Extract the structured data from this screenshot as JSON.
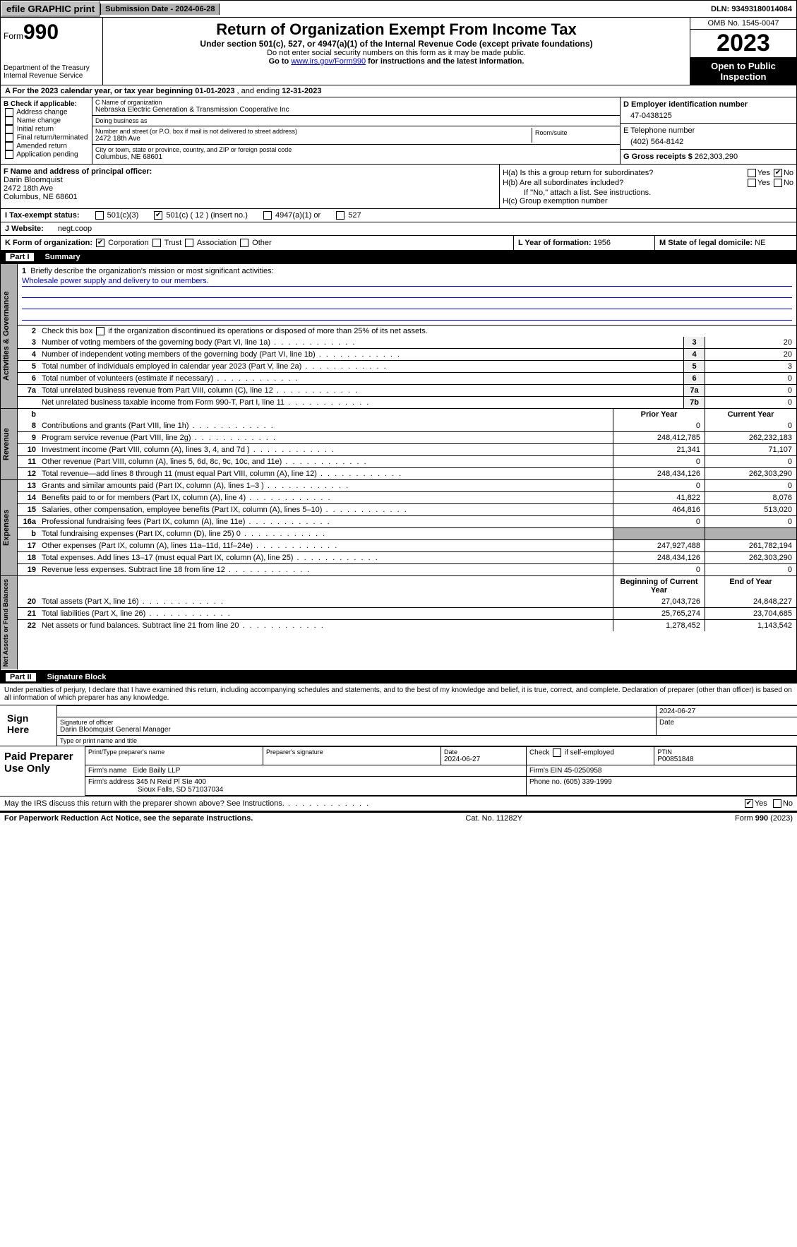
{
  "header": {
    "efile_label": "efile GRAPHIC print - DO NOT PROCESS",
    "print_btn": "efile GRAPHIC print",
    "sub_date_label": "Submission Date - ",
    "sub_date": "2024-06-28",
    "dln_label": "DLN: ",
    "dln": "93493180014084"
  },
  "top": {
    "form_prefix": "Form",
    "form_number": "990",
    "dept": "Department of the Treasury",
    "irs": "Internal Revenue Service",
    "title": "Return of Organization Exempt From Income Tax",
    "subtitle": "Under section 501(c), 527, or 4947(a)(1) of the Internal Revenue Code (except private foundations)",
    "ssn_note": "Do not enter social security numbers on this form as it may be made public.",
    "goto_prefix": "Go to ",
    "goto_link": "www.irs.gov/Form990",
    "goto_suffix": " for instructions and the latest information.",
    "omb": "OMB No. 1545-0047",
    "year": "2023",
    "open_pub": "Open to Public Inspection"
  },
  "row_a": {
    "text": "A For the 2023 calendar year, or tax year beginning ",
    "begin": "01-01-2023",
    "mid": "    , and ending ",
    "end": "12-31-2023"
  },
  "section_b": {
    "header": "B Check if applicable:",
    "items": [
      "Address change",
      "Name change",
      "Initial return",
      "Final return/terminated",
      "Amended return",
      "Application pending"
    ]
  },
  "section_c": {
    "name_label": "C Name of organization",
    "name": "Nebraska Electric Generation & Transmission Cooperative Inc",
    "dba_label": "Doing business as",
    "dba": "",
    "street_label": "Number and street (or P.O. box if mail is not delivered to street address)",
    "street": "2472 18th Ave",
    "room_label": "Room/suite",
    "room": "",
    "city_label": "City or town, state or province, country, and ZIP or foreign postal code",
    "city": "Columbus, NE  68601"
  },
  "section_d": {
    "label": "D Employer identification number",
    "ein": "47-0438125"
  },
  "section_e": {
    "label": "E Telephone number",
    "phone": "(402) 564-8142"
  },
  "section_g": {
    "label": "G Gross receipts $ ",
    "amount": "262,303,290"
  },
  "section_f": {
    "label": "F  Name and address of principal officer:",
    "name": "Darin Bloomquist",
    "street": "2472 18th Ave",
    "city": "Columbus, NE  68601"
  },
  "section_h": {
    "a_label": "H(a)  Is this a group return for subordinates?",
    "b_label": "H(b)  Are all subordinates included?",
    "b_note": "If \"No,\" attach a list. See instructions.",
    "c_label": "H(c)  Group exemption number",
    "yes": "Yes",
    "no": "No"
  },
  "section_i": {
    "label": "I  Tax-exempt status:",
    "opt1": "501(c)(3)",
    "opt2_pre": "501(c) ( ",
    "opt2_num": "12",
    "opt2_post": " ) (insert no.)",
    "opt3": "4947(a)(1) or",
    "opt4": "527"
  },
  "section_j": {
    "label": "J  Website:",
    "value": "negt.coop"
  },
  "section_k": {
    "label": "K Form of organization:",
    "opts": [
      "Corporation",
      "Trust",
      "Association",
      "Other"
    ]
  },
  "section_l": {
    "label": "L Year of formation: ",
    "value": "1956"
  },
  "section_m": {
    "label": "M State of legal domicile: ",
    "value": "NE"
  },
  "part1": {
    "hdr": "Part I",
    "title": "Summary",
    "vlabels": [
      "Activities & Governance",
      "Revenue",
      "Expenses",
      "Net Assets or Fund Balances"
    ],
    "mission_label": "Briefly describe the organization's mission or most significant activities:",
    "mission": "Wholesale power supply and delivery to our members.",
    "line2": "Check this box       if the organization discontinued its operations or disposed of more than 25% of its net assets.",
    "gov_lines": [
      {
        "n": "3",
        "d": "Number of voting members of the governing body (Part VI, line 1a)",
        "box": "3",
        "v": "20"
      },
      {
        "n": "4",
        "d": "Number of independent voting members of the governing body (Part VI, line 1b)",
        "box": "4",
        "v": "20"
      },
      {
        "n": "5",
        "d": "Total number of individuals employed in calendar year 2023 (Part V, line 2a)",
        "box": "5",
        "v": "3"
      },
      {
        "n": "6",
        "d": "Total number of volunteers (estimate if necessary)",
        "box": "6",
        "v": "0"
      },
      {
        "n": "7a",
        "d": "Total unrelated business revenue from Part VIII, column (C), line 12",
        "box": "7a",
        "v": "0"
      },
      {
        "n": "",
        "d": "Net unrelated business taxable income from Form 990-T, Part I, line 11",
        "box": "7b",
        "v": "0"
      }
    ],
    "col_prior": "Prior Year",
    "col_current": "Current Year",
    "rev_lines": [
      {
        "n": "8",
        "d": "Contributions and grants (Part VIII, line 1h)",
        "p": "0",
        "c": "0"
      },
      {
        "n": "9",
        "d": "Program service revenue (Part VIII, line 2g)",
        "p": "248,412,785",
        "c": "262,232,183"
      },
      {
        "n": "10",
        "d": "Investment income (Part VIII, column (A), lines 3, 4, and 7d )",
        "p": "21,341",
        "c": "71,107"
      },
      {
        "n": "11",
        "d": "Other revenue (Part VIII, column (A), lines 5, 6d, 8c, 9c, 10c, and 11e)",
        "p": "0",
        "c": "0"
      },
      {
        "n": "12",
        "d": "Total revenue—add lines 8 through 11 (must equal Part VIII, column (A), line 12)",
        "p": "248,434,126",
        "c": "262,303,290"
      }
    ],
    "exp_lines": [
      {
        "n": "13",
        "d": "Grants and similar amounts paid (Part IX, column (A), lines 1–3 )",
        "p": "0",
        "c": "0"
      },
      {
        "n": "14",
        "d": "Benefits paid to or for members (Part IX, column (A), line 4)",
        "p": "41,822",
        "c": "8,076"
      },
      {
        "n": "15",
        "d": "Salaries, other compensation, employee benefits (Part IX, column (A), lines 5–10)",
        "p": "464,816",
        "c": "513,020"
      },
      {
        "n": "16a",
        "d": "Professional fundraising fees (Part IX, column (A), line 11e)",
        "p": "0",
        "c": "0"
      },
      {
        "n": "b",
        "d": "Total fundraising expenses (Part IX, column (D), line 25) 0",
        "p": "",
        "c": "",
        "gray": true
      },
      {
        "n": "17",
        "d": "Other expenses (Part IX, column (A), lines 11a–11d, 11f–24e)",
        "p": "247,927,488",
        "c": "261,782,194"
      },
      {
        "n": "18",
        "d": "Total expenses. Add lines 13–17 (must equal Part IX, column (A), line 25)",
        "p": "248,434,126",
        "c": "262,303,290"
      },
      {
        "n": "19",
        "d": "Revenue less expenses. Subtract line 18 from line 12",
        "p": "0",
        "c": "0"
      }
    ],
    "col_begin": "Beginning of Current Year",
    "col_end": "End of Year",
    "net_lines": [
      {
        "n": "20",
        "d": "Total assets (Part X, line 16)",
        "p": "27,043,726",
        "c": "24,848,227"
      },
      {
        "n": "21",
        "d": "Total liabilities (Part X, line 26)",
        "p": "25,765,274",
        "c": "23,704,685"
      },
      {
        "n": "22",
        "d": "Net assets or fund balances. Subtract line 21 from line 20",
        "p": "1,278,452",
        "c": "1,143,542"
      }
    ]
  },
  "part2": {
    "hdr": "Part II",
    "title": "Signature Block",
    "perjury": "Under penalties of perjury, I declare that I have examined this return, including accompanying schedules and statements, and to the best of my knowledge and belief, it is true, correct, and complete. Declaration of preparer (other than officer) is based on all information of which preparer has any knowledge.",
    "sign_here": "Sign Here",
    "sig_officer_label": "Signature of officer",
    "officer_name": "Darin Bloomquist  General Manager",
    "type_label": "Type or print name and title",
    "date_label": "Date",
    "date": "2024-06-27",
    "paid_label": "Paid Preparer Use Only",
    "prep_name_label": "Print/Type preparer's name",
    "prep_name": "",
    "prep_sig_label": "Preparer's signature",
    "prep_date_label": "Date",
    "prep_date": "2024-06-27",
    "self_emp_label": "Check       if self-employed",
    "ptin_label": "PTIN",
    "ptin": "P00851848",
    "firm_name_label": "Firm's name",
    "firm_name": "Eide Bailly LLP",
    "firm_ein_label": "Firm's EIN",
    "firm_ein": "45-0250958",
    "firm_addr_label": "Firm's address",
    "firm_addr1": "345 N Reid Pl Ste 400",
    "firm_addr2": "Sioux Falls, SD  571037034",
    "phone_label": "Phone no.",
    "phone": "(605) 339-1999"
  },
  "discuss": {
    "q": "May the IRS discuss this return with the preparer shown above? See Instructions.",
    "yes": "Yes",
    "no": "No"
  },
  "footer": {
    "left": "For Paperwork Reduction Act Notice, see the separate instructions.",
    "mid": "Cat. No. 11282Y",
    "right_pre": "Form ",
    "right_form": "990",
    "right_post": " (2023)"
  }
}
